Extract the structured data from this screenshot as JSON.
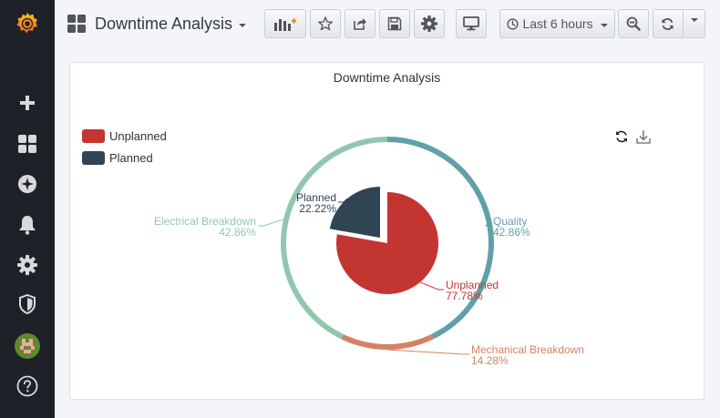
{
  "header": {
    "title": "Downtime Analysis",
    "time_range": "Last 6 hours"
  },
  "panel": {
    "title": "Downtime Analysis"
  },
  "legend": [
    {
      "label": "Unplanned",
      "color": "#c23531"
    },
    {
      "label": "Planned",
      "color": "#2f4554"
    }
  ],
  "chart_data": {
    "type": "pie",
    "inner": {
      "series": [
        {
          "name": "Unplanned",
          "percent": "77.78%",
          "value": 77.78,
          "color": "#c23531"
        },
        {
          "name": "Planned",
          "percent": "22.22%",
          "value": 22.22,
          "color": "#2f4554"
        }
      ]
    },
    "outer": {
      "series": [
        {
          "name": "Quality",
          "percent": "42.86%",
          "value": 42.86,
          "color": "#61a0a8"
        },
        {
          "name": "Mechanical Breakdown",
          "percent": "14.28%",
          "value": 14.28,
          "color": "#d48265"
        },
        {
          "name": "Electrical Breakdown",
          "percent": "42.86%",
          "value": 42.86,
          "color": "#91c7ae"
        }
      ]
    }
  },
  "colors": {
    "sidebar_bg": "#1f2129",
    "accent": "#eb7b18"
  }
}
